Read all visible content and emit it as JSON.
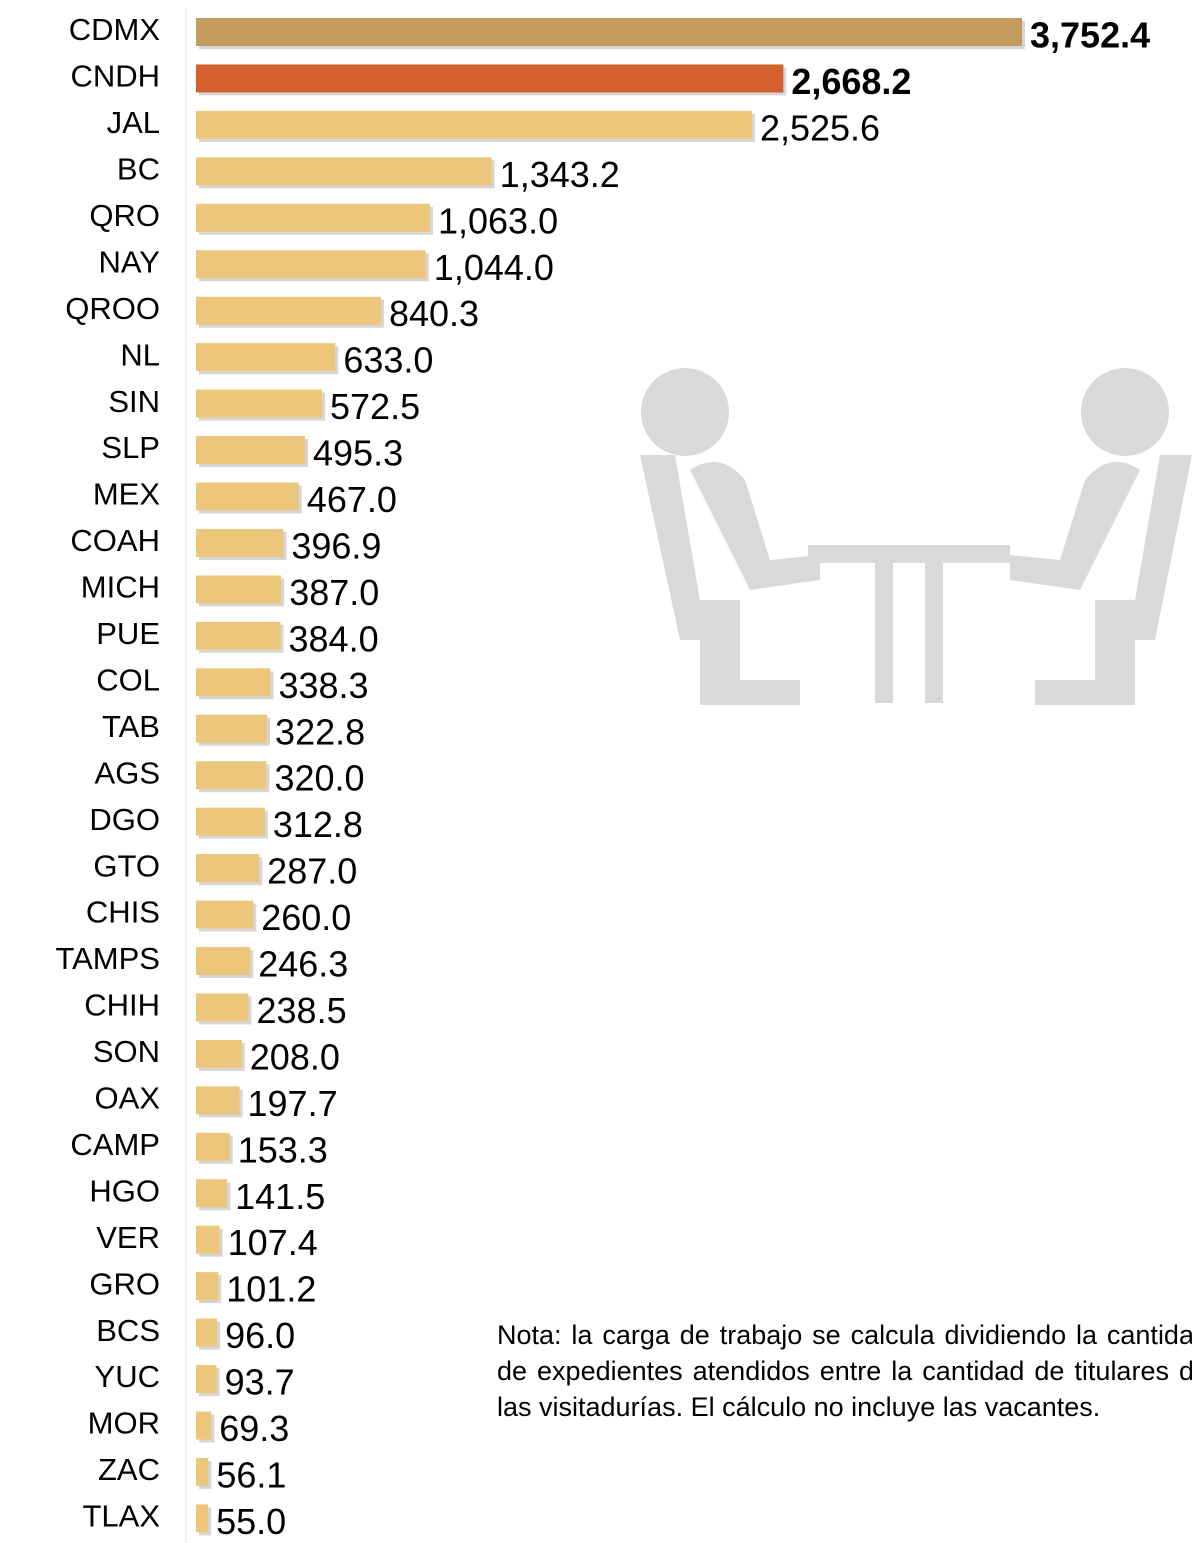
{
  "chart_data": {
    "type": "bar",
    "orientation": "horizontal",
    "categories": [
      "CDMX",
      "CNDH",
      "JAL",
      "BC",
      "QRO",
      "NAY",
      "QROO",
      "NL",
      "SIN",
      "SLP",
      "MEX",
      "COAH",
      "MICH",
      "PUE",
      "COL",
      "TAB",
      "AGS",
      "DGO",
      "GTO",
      "CHIS",
      "TAMPS",
      "CHIH",
      "SON",
      "OAX",
      "CAMP",
      "HGO",
      "VER",
      "GRO",
      "BCS",
      "YUC",
      "MOR",
      "ZAC",
      "TLAX"
    ],
    "values": [
      3752.4,
      2668.2,
      2525.6,
      1343.2,
      1063.0,
      1044.0,
      840.3,
      633.0,
      572.5,
      495.3,
      467.0,
      396.9,
      387.0,
      384.0,
      338.3,
      322.8,
      320.0,
      312.8,
      287.0,
      260.0,
      246.3,
      238.5,
      208.0,
      197.7,
      153.3,
      141.5,
      107.4,
      101.2,
      96.0,
      93.7,
      69.3,
      56.1,
      55.0
    ],
    "value_labels": [
      "3,752.4",
      "2,668.2",
      "2,525.6",
      "1,343.2",
      "1,063.0",
      "1,044.0",
      "840.3",
      "633.0",
      "572.5",
      "495.3",
      "467.0",
      "396.9",
      "387.0",
      "384.0",
      "338.3",
      "322.8",
      "320.0",
      "312.8",
      "287.0",
      "260.0",
      "246.3",
      "238.5",
      "208.0",
      "197.7",
      "153.3",
      "141.5",
      "107.4",
      "101.2",
      "96.0",
      "93.7",
      "69.3",
      "56.1",
      "55.0"
    ],
    "color": "#ecc67b",
    "colors": [
      "#c49b5f",
      "#d4602d",
      "#ecc67b",
      "#ecc67b",
      "#ecc67b",
      "#ecc67b",
      "#ecc67b",
      "#ecc67b",
      "#ecc67b",
      "#ecc67b",
      "#ecc67b",
      "#ecc67b",
      "#ecc67b",
      "#ecc67b",
      "#ecc67b",
      "#ecc67b",
      "#ecc67b",
      "#ecc67b",
      "#ecc67b",
      "#ecc67b",
      "#ecc67b",
      "#ecc67b",
      "#ecc67b",
      "#ecc67b",
      "#ecc67b",
      "#ecc67b",
      "#ecc67b",
      "#ecc67b",
      "#ecc67b",
      "#ecc67b",
      "#ecc67b",
      "#ecc67b",
      "#ecc67b"
    ],
    "note": "Nota: la carga de trabajo se calcula dividiendo la cantidad de expedientes atendidos entre la cantidad de titulares de las visitadurías. El cálculo no incluye las vacantes."
  }
}
